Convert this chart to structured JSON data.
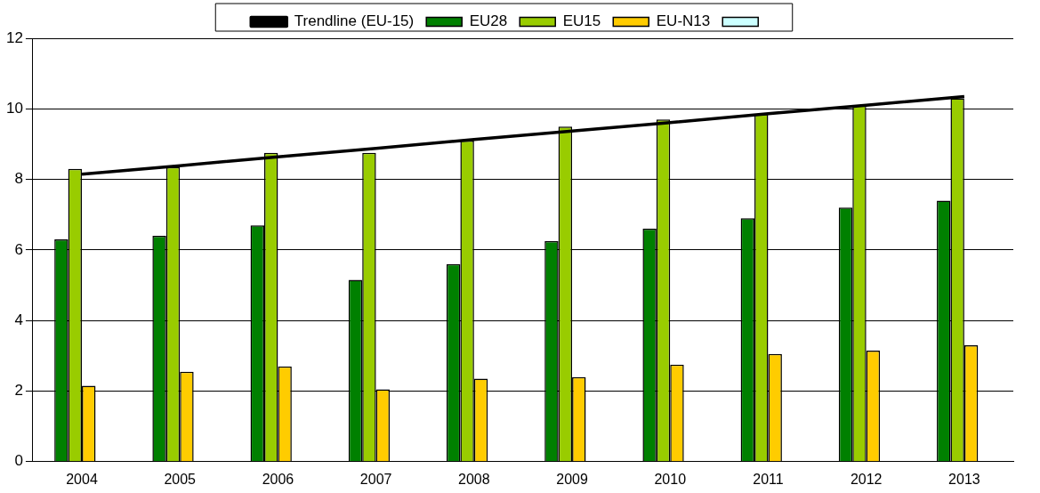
{
  "chart_data": {
    "type": "bar",
    "categories": [
      "2004",
      "2005",
      "2006",
      "2007",
      "2008",
      "2009",
      "2010",
      "2011",
      "2012",
      "2013"
    ],
    "series": [
      {
        "name": "EU28",
        "color": "#008000",
        "values": [
          6.3,
          6.4,
          6.7,
          5.15,
          5.6,
          6.25,
          6.6,
          6.9,
          7.2,
          7.4
        ]
      },
      {
        "name": "EU15",
        "color": "#99cc00",
        "values": [
          8.3,
          8.35,
          8.75,
          8.75,
          9.1,
          9.5,
          9.7,
          9.85,
          10.1,
          10.3
        ]
      },
      {
        "name": "EU-N13",
        "color": "#ffcc00",
        "values": [
          2.15,
          2.55,
          2.7,
          2.05,
          2.35,
          2.4,
          2.75,
          3.05,
          3.15,
          3.3
        ]
      },
      {
        "color": "#ccffff",
        "values": [
          null,
          null,
          null,
          null,
          null,
          null,
          null,
          null,
          null,
          null
        ]
      },
      {
        "name": "Trendline (EU-15)",
        "type": "line",
        "color": "#000000",
        "marker": "none",
        "values": [
          8.15,
          8.39,
          8.64,
          8.88,
          9.13,
          9.37,
          9.61,
          9.86,
          10.1,
          10.35
        ]
      }
    ],
    "ylim": [
      0,
      12
    ],
    "yticks": [
      0,
      2,
      4,
      6,
      8,
      10,
      12
    ],
    "grid": "y",
    "legend": "top"
  }
}
